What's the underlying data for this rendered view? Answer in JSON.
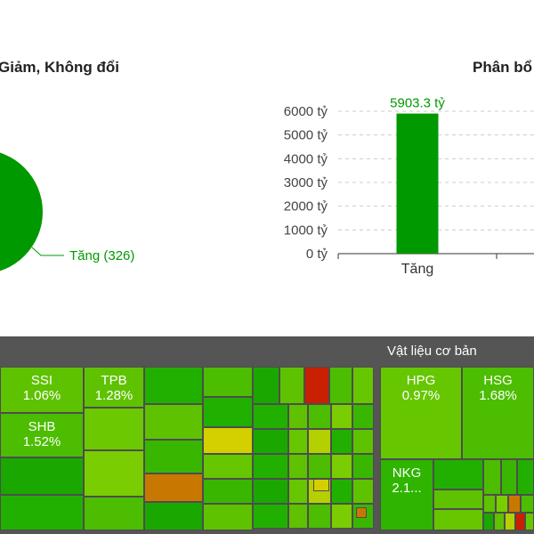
{
  "pie_title": "Giảm, Không đổi",
  "bar_title": "Phân bổ",
  "chart_data": [
    {
      "type": "pie",
      "title": "Giảm, Không đổi",
      "slices": [
        {
          "label": "Tăng",
          "count": 326,
          "display": "Tăng (326)",
          "color": "#009900"
        }
      ]
    },
    {
      "type": "bar",
      "title": "Phân bổ",
      "categories": [
        "Tăng"
      ],
      "values": [
        5903.3
      ],
      "value_labels": [
        "5903.3 tỷ"
      ],
      "yticks": [
        {
          "value": 0,
          "label": "0 tỷ"
        },
        {
          "value": 1000,
          "label": "1000 tỷ"
        },
        {
          "value": 2000,
          "label": "2000 tỷ"
        },
        {
          "value": 3000,
          "label": "3000 tỷ"
        },
        {
          "value": 4000,
          "label": "4000 tỷ"
        },
        {
          "value": 5000,
          "label": "5000 tỷ"
        },
        {
          "value": 6000,
          "label": "6000 tỷ"
        }
      ],
      "ylim": [
        0,
        6000
      ],
      "grid": true,
      "bar_color": "#009900",
      "label_color": "#009900"
    },
    {
      "type": "heatmap",
      "sectors": [
        {
          "name": ""
        },
        {
          "name": "Vật liệu cơ bản"
        }
      ],
      "tiles": [
        {
          "label": "SSI",
          "value": "1.06%",
          "color": "#5ec200"
        },
        {
          "label": "TPB",
          "value": "1.28%",
          "color": "#5ec200"
        },
        {
          "label": "SHB",
          "value": "1.52%",
          "color": "#4cbd00"
        },
        {
          "label": "HPG",
          "value": "0.97%",
          "color": "#66c600"
        },
        {
          "label": "HSG",
          "value": "1.68%",
          "color": "#4cbd00"
        },
        {
          "label": "NKG",
          "value": "2.1...",
          "color": "#2fb400"
        }
      ]
    }
  ]
}
